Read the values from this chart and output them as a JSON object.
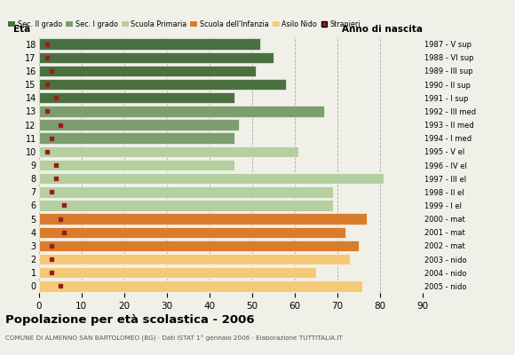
{
  "ages": [
    18,
    17,
    16,
    15,
    14,
    13,
    12,
    11,
    10,
    9,
    8,
    7,
    6,
    5,
    4,
    3,
    2,
    1,
    0
  ],
  "bar_values": [
    52,
    55,
    51,
    58,
    46,
    67,
    47,
    46,
    61,
    46,
    81,
    69,
    69,
    77,
    72,
    75,
    73,
    65,
    76
  ],
  "foreigners": [
    2,
    2,
    3,
    2,
    4,
    2,
    5,
    3,
    2,
    4,
    4,
    3,
    6,
    5,
    6,
    3,
    3,
    3,
    5
  ],
  "year_labels": [
    "1987 - V sup",
    "1988 - VI sup",
    "1989 - III sup",
    "1990 - II sup",
    "1991 - I sup",
    "1992 - III med",
    "1993 - II med",
    "1994 - I med",
    "1995 - V el",
    "1996 - IV el",
    "1997 - III el",
    "1998 - II el",
    "1999 - I el",
    "2000 - mat",
    "2001 - mat",
    "2002 - mat",
    "2003 - nido",
    "2004 - nido",
    "2005 - nido"
  ],
  "colors": {
    "sec2": "#4a7040",
    "sec1": "#7d9e6e",
    "primaria": "#b5cfa0",
    "infanzia": "#d97c2b",
    "nido": "#f5c97a",
    "stranieri": "#9b1c1c"
  },
  "legend_labels": [
    "Sec. II grado",
    "Sec. I grado",
    "Scuola Primaria",
    "Scuola dell'Infanzia",
    "Asilo Nido",
    "Stranieri"
  ],
  "title": "Popolazione per età scolastica - 2006",
  "subtitle": "COMUNE DI ALMENNO SAN BARTOLOMEO (BG) · Dati ISTAT 1° gennaio 2006 · Elaborazione TUTTITALIA.IT",
  "xlabel_eta": "Età",
  "xlabel_anno": "Anno di nascita",
  "xlim": [
    0,
    90
  ],
  "xticks": [
    0,
    10,
    20,
    30,
    40,
    50,
    60,
    70,
    80,
    90
  ],
  "background_color": "#f0f0e8"
}
